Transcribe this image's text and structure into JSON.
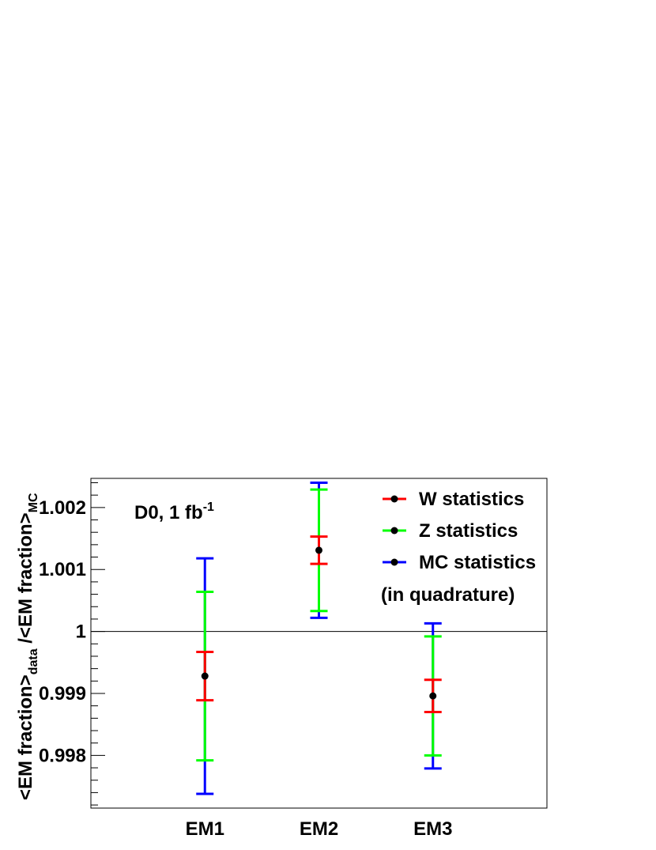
{
  "chart_data": {
    "type": "scatter",
    "title": "",
    "categories": [
      "EM1",
      "EM2",
      "EM3"
    ],
    "x": [
      1,
      2,
      3
    ],
    "xlim": [
      0,
      4
    ],
    "ylim": [
      0.99715,
      1.00247
    ],
    "ylabel": {
      "main1": "<EM fraction>",
      "sub1": "data",
      "main2": " /<EM fraction>",
      "sub2": "MC"
    },
    "y_ticks": [
      {
        "value": 0.998,
        "label": "0.998"
      },
      {
        "value": 0.999,
        "label": "0.999"
      },
      {
        "value": 1.0,
        "label": "1"
      },
      {
        "value": 1.001,
        "label": "1.001"
      },
      {
        "value": 1.002,
        "label": "1.002"
      }
    ],
    "reference_line": 1.0,
    "grid": false,
    "annotation": {
      "text": "D0, 1 fb",
      "superscript": "-1"
    },
    "legend_position": "top-right",
    "central_values": [
      0.99928,
      1.00131,
      0.99896
    ],
    "series": [
      {
        "name": "W statistics",
        "color": "#ff0000",
        "errors": [
          0.00039,
          0.00022,
          0.00026
        ]
      },
      {
        "name": "Z statistics",
        "color": "#00ff00",
        "errors": [
          0.00136,
          0.00098,
          0.00096
        ]
      },
      {
        "name": "MC statistics",
        "color": "#0000ff",
        "errors": [
          0.0019,
          0.00109,
          0.00117
        ]
      }
    ],
    "legend_note": "(in quadrature)"
  }
}
